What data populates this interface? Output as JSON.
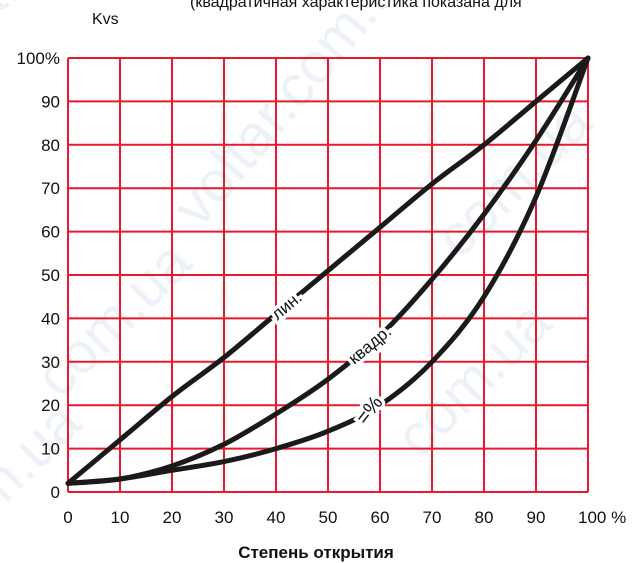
{
  "chart_data": {
    "type": "line",
    "title": "(квадратичная характеристика показана для",
    "ylabel": "Kvs",
    "xlabel": "Степень открытия",
    "x_unit_label": "100 %",
    "xlim": [
      0,
      100
    ],
    "ylim": [
      0,
      100
    ],
    "x_ticks": [
      "0",
      "10",
      "20",
      "30",
      "40",
      "50",
      "60",
      "70",
      "80",
      "90",
      "100 %"
    ],
    "y_ticks": [
      "0",
      "10",
      "20",
      "30",
      "40",
      "50",
      "60",
      "70",
      "80",
      "90",
      "100%"
    ],
    "grid": true,
    "series": [
      {
        "name": "лин.",
        "x": [
          0,
          10,
          20,
          30,
          40,
          50,
          60,
          70,
          80,
          90,
          100
        ],
        "y": [
          2,
          12,
          22,
          31,
          41,
          51,
          61,
          71,
          80,
          90,
          100
        ]
      },
      {
        "name": "квадр.",
        "x": [
          0,
          10,
          20,
          30,
          40,
          50,
          60,
          70,
          80,
          90,
          100
        ],
        "y": [
          2,
          3,
          6,
          11,
          18,
          26,
          36,
          49,
          64,
          81,
          100
        ]
      },
      {
        "name": "=%",
        "x": [
          0,
          10,
          20,
          30,
          40,
          50,
          60,
          70,
          80,
          90,
          100
        ],
        "y": [
          2,
          3,
          5,
          7,
          10,
          14,
          20,
          30,
          45,
          68,
          100
        ]
      }
    ],
    "colors": {
      "grid": "#e8192c",
      "curve": "#1a1a1a",
      "watermark": "#dfe6f3"
    }
  },
  "watermark_text": [
    "oltar.com.ua",
    "voltar.com.ua",
    "com.ua",
    "com.ua",
    "om.ua",
    "com.ua"
  ]
}
